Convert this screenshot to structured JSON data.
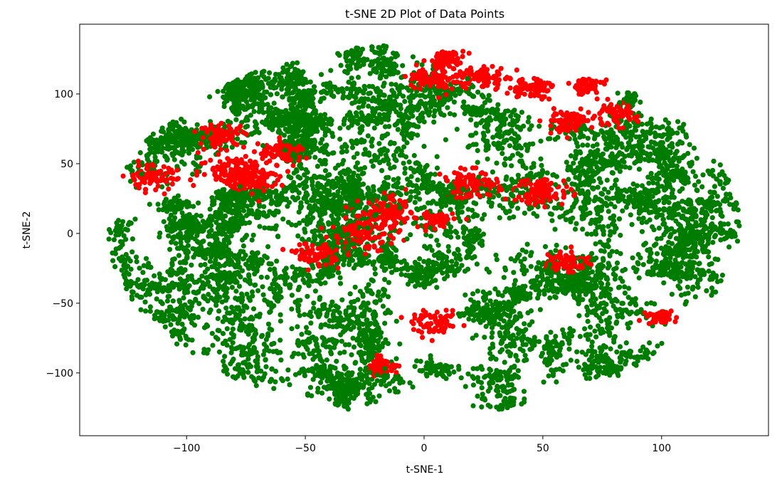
{
  "chart_data": {
    "type": "scatter",
    "title": "t-SNE 2D Plot of Data Points",
    "xlabel": "t-SNE-1",
    "ylabel": "t-SNE-2",
    "xlim": [
      -145,
      145
    ],
    "ylim": [
      -145,
      150
    ],
    "xticks": [
      -100,
      -50,
      0,
      50,
      100
    ],
    "yticks": [
      -100,
      -50,
      0,
      50,
      100
    ],
    "xtick_labels": [
      "−100",
      "−50",
      "0",
      "50",
      "100"
    ],
    "ytick_labels": [
      "−100",
      "−50",
      "0",
      "50",
      "100"
    ],
    "grid": false,
    "legend": "none",
    "series_colors": [
      "#007c00",
      "#ff0000"
    ],
    "marker": "circle",
    "point_count_estimate": 20000,
    "series": [
      {
        "color": "#007c00",
        "distribution": "dense clusters filling an ellipse centred near (0, 5) spanning x -135..130, y -130..135"
      },
      {
        "color": "#ff0000",
        "clusters": [
          {
            "x": 10,
            "y": 125,
            "spread": 6
          },
          {
            "x": 5,
            "y": 112,
            "spread": 10
          },
          {
            "x": 25,
            "y": 112,
            "spread": 8
          },
          {
            "x": 45,
            "y": 105,
            "spread": 8
          },
          {
            "x": 68,
            "y": 106,
            "spread": 6
          },
          {
            "x": 80,
            "y": 85,
            "spread": 8
          },
          {
            "x": -115,
            "y": 40,
            "spread": 9
          },
          {
            "x": -85,
            "y": 70,
            "spread": 8
          },
          {
            "x": -80,
            "y": 45,
            "spread": 12
          },
          {
            "x": -70,
            "y": 40,
            "spread": 10
          },
          {
            "x": -60,
            "y": 58,
            "spread": 8
          },
          {
            "x": -45,
            "y": -15,
            "spread": 8
          },
          {
            "x": -25,
            "y": 0,
            "spread": 12
          },
          {
            "x": -15,
            "y": 15,
            "spread": 10
          },
          {
            "x": 5,
            "y": 10,
            "spread": 6
          },
          {
            "x": 20,
            "y": 35,
            "spread": 10
          },
          {
            "x": 50,
            "y": 30,
            "spread": 10
          },
          {
            "x": 60,
            "y": -20,
            "spread": 8
          },
          {
            "x": 5,
            "y": -65,
            "spread": 8
          },
          {
            "x": -18,
            "y": -95,
            "spread": 6
          },
          {
            "x": 100,
            "y": -60,
            "spread": 5
          },
          {
            "x": 60,
            "y": 80,
            "spread": 8
          }
        ]
      }
    ]
  }
}
